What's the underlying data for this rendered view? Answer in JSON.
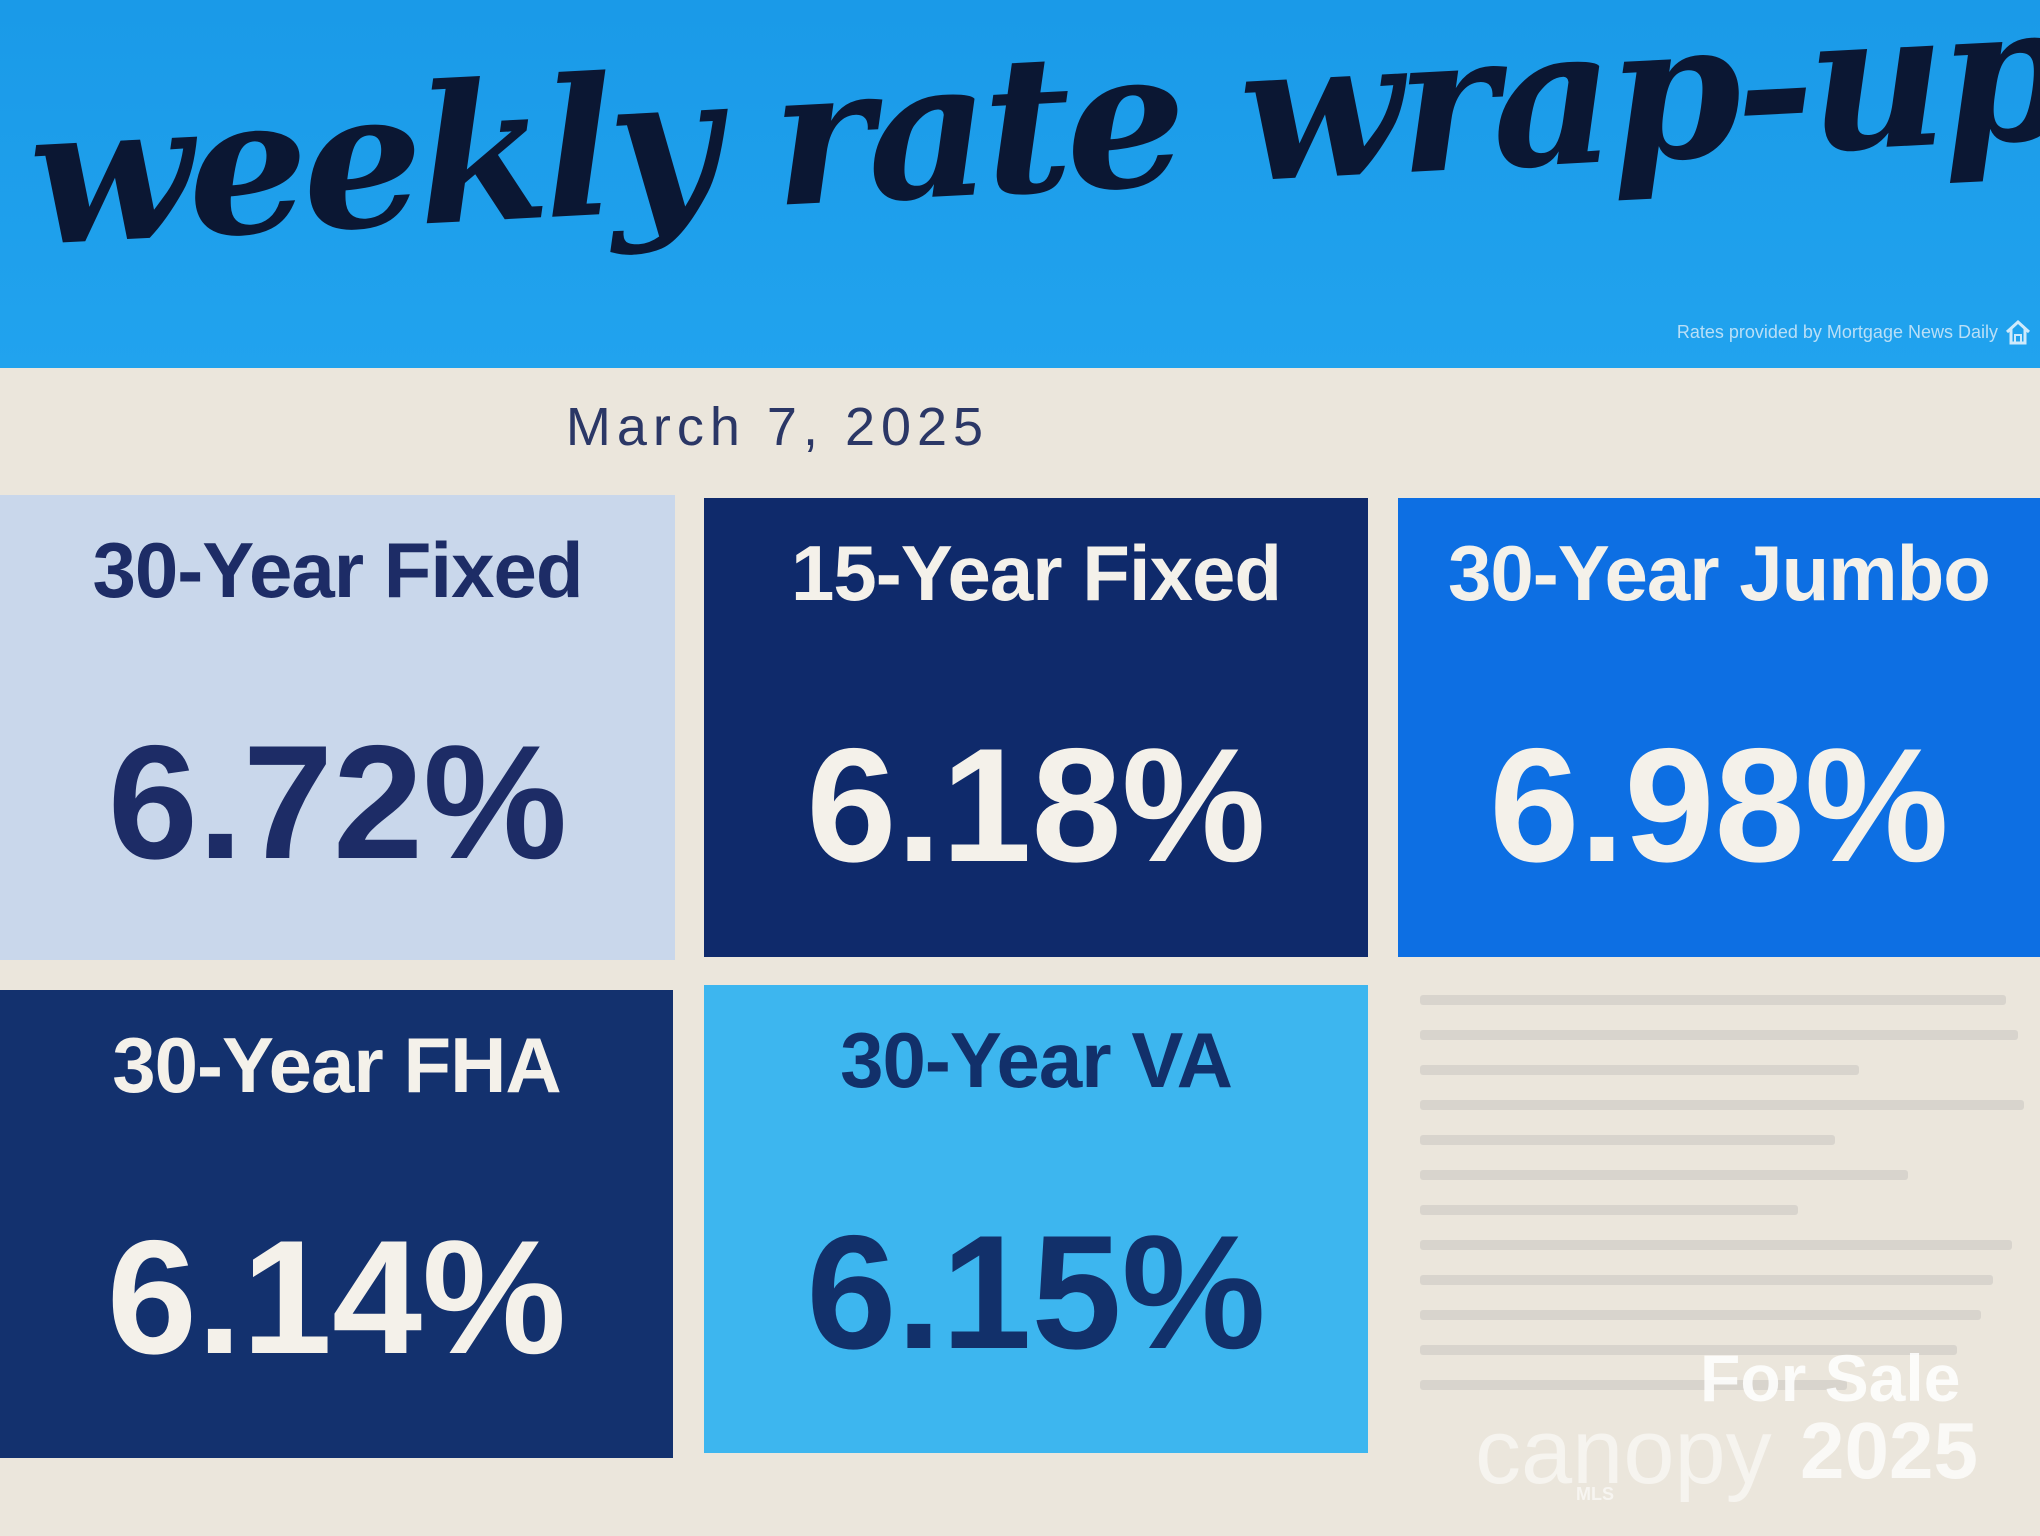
{
  "header": {
    "title": "weekly rate wrap-up",
    "credit": "Rates provided by Mortgage News Daily",
    "icon": "home-icon"
  },
  "date": "March 7, 2025",
  "cards": [
    {
      "label": "30-Year Fixed",
      "rate": "6.72%",
      "bg": "#c9d7eb",
      "fg": "#1d2c66"
    },
    {
      "label": "15-Year Fixed",
      "rate": "6.18%",
      "bg": "#0f2a6b",
      "fg": "#f4f1ea"
    },
    {
      "label": "30-Year Jumbo",
      "rate": "6.98%",
      "bg": "#0d6fe3",
      "fg": "#f4f1ea"
    },
    {
      "label": "30-Year FHA",
      "rate": "6.14%",
      "bg": "#13316e",
      "fg": "#f4f1ea"
    },
    {
      "label": "30-Year VA",
      "rate": "6.15%",
      "bg": "#3db6ef",
      "fg": "#12306a"
    }
  ],
  "watermark": {
    "for_sale": "For Sale",
    "brand": "canopy",
    "mls": "MLS",
    "year": "2025"
  }
}
